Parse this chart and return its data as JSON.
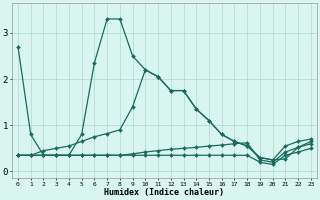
{
  "xlabel": "Humidex (Indice chaleur)",
  "background_color": "#d8f5f0",
  "grid_color": "#b0d8d0",
  "line_color": "#1a6b5e",
  "xlim": [
    -0.5,
    23.5
  ],
  "ylim": [
    -0.15,
    3.65
  ],
  "xticks": [
    0,
    1,
    2,
    3,
    4,
    5,
    6,
    7,
    8,
    9,
    10,
    11,
    12,
    13,
    14,
    15,
    16,
    17,
    18,
    19,
    20,
    21,
    22,
    23
  ],
  "yticks": [
    0,
    1,
    2,
    3
  ],
  "series": [
    {
      "x": [
        0,
        1,
        2,
        3,
        4,
        5,
        6,
        7,
        8,
        9,
        10,
        11,
        12,
        13,
        14,
        15,
        16,
        17,
        18,
        19,
        20,
        21,
        22,
        23
      ],
      "y": [
        2.7,
        0.8,
        0.35,
        0.35,
        0.35,
        0.8,
        2.35,
        3.3,
        3.3,
        2.5,
        2.2,
        2.05,
        1.75,
        1.75,
        1.35,
        1.1,
        0.8,
        0.65,
        0.55,
        0.3,
        0.25,
        0.27,
        0.52,
        0.65
      ]
    },
    {
      "x": [
        0,
        1,
        2,
        3,
        4,
        5,
        6,
        7,
        8,
        9,
        10,
        11,
        12,
        13,
        14,
        15,
        16,
        17,
        18,
        19,
        20,
        21,
        22,
        23
      ],
      "y": [
        0.35,
        0.35,
        0.45,
        0.5,
        0.55,
        0.65,
        0.75,
        0.82,
        0.9,
        1.4,
        2.2,
        2.05,
        1.75,
        1.75,
        1.35,
        1.1,
        0.8,
        0.65,
        0.55,
        0.3,
        0.25,
        0.55,
        0.65,
        0.7
      ]
    },
    {
      "x": [
        0,
        1,
        2,
        3,
        4,
        5,
        6,
        7,
        8,
        9,
        10,
        11,
        12,
        13,
        14,
        15,
        16,
        17,
        18,
        19,
        20,
        21,
        22,
        23
      ],
      "y": [
        0.35,
        0.35,
        0.35,
        0.35,
        0.35,
        0.35,
        0.35,
        0.35,
        0.35,
        0.38,
        0.42,
        0.45,
        0.48,
        0.5,
        0.52,
        0.55,
        0.57,
        0.6,
        0.62,
        0.25,
        0.2,
        0.42,
        0.52,
        0.6
      ]
    },
    {
      "x": [
        0,
        1,
        2,
        3,
        4,
        5,
        6,
        7,
        8,
        9,
        10,
        11,
        12,
        13,
        14,
        15,
        16,
        17,
        18,
        19,
        20,
        21,
        22,
        23
      ],
      "y": [
        0.35,
        0.35,
        0.35,
        0.35,
        0.35,
        0.35,
        0.35,
        0.35,
        0.35,
        0.35,
        0.35,
        0.35,
        0.35,
        0.35,
        0.35,
        0.35,
        0.35,
        0.35,
        0.35,
        0.2,
        0.15,
        0.35,
        0.42,
        0.5
      ]
    }
  ]
}
